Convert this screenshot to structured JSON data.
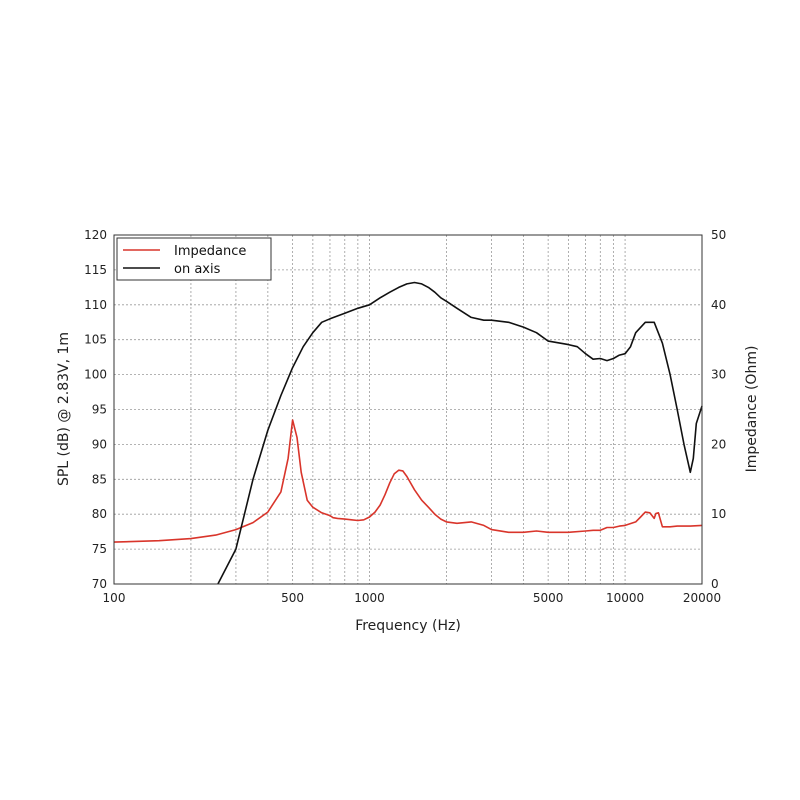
{
  "chart_data": {
    "type": "line",
    "xlabel": "Frequency (Hz)",
    "ylabel_left": "SPL (dB) @ 2.83V, 1m",
    "ylabel_right": "Impedance (Ohm)",
    "x_scale": "log",
    "xlim": [
      100,
      20000
    ],
    "ylim_left": [
      70,
      120
    ],
    "ylim_right": [
      0,
      50
    ],
    "x_tick_labels": [
      "100",
      "500",
      "1000",
      "5000",
      "10000",
      "20000"
    ],
    "y_left_tick_labels": [
      "70",
      "75",
      "80",
      "85",
      "90",
      "95",
      "100",
      "105",
      "110",
      "115",
      "120"
    ],
    "y_right_tick_labels": [
      "0",
      "10",
      "20",
      "30",
      "40",
      "50"
    ],
    "grid": true,
    "legend_placement": "top-left",
    "series": [
      {
        "name": "Impedance",
        "axis": "right",
        "color": "#d9352b",
        "x": [
          100,
          150,
          200,
          250,
          300,
          350,
          400,
          450,
          480,
          500,
          520,
          540,
          570,
          600,
          650,
          700,
          720,
          750,
          800,
          850,
          900,
          950,
          1000,
          1050,
          1100,
          1150,
          1200,
          1250,
          1300,
          1350,
          1400,
          1500,
          1600,
          1700,
          1800,
          1900,
          2000,
          2200,
          2500,
          2800,
          3000,
          3500,
          4000,
          4500,
          5000,
          6000,
          7000,
          7500,
          8000,
          8500,
          9000,
          9500,
          10000,
          11000,
          11500,
          12000,
          12500,
          13000,
          13200,
          13500,
          14000,
          14500,
          15000,
          16000,
          18000,
          20000
        ],
        "y": [
          6.0,
          6.2,
          6.5,
          7.0,
          7.8,
          8.8,
          10.3,
          13.2,
          18.0,
          23.5,
          21.0,
          16.0,
          12.0,
          11.0,
          10.2,
          9.8,
          9.5,
          9.4,
          9.3,
          9.2,
          9.1,
          9.2,
          9.6,
          10.3,
          11.3,
          12.8,
          14.5,
          15.8,
          16.3,
          16.2,
          15.4,
          13.5,
          12.0,
          11.0,
          10.0,
          9.3,
          8.9,
          8.7,
          8.9,
          8.4,
          7.8,
          7.4,
          7.4,
          7.6,
          7.4,
          7.4,
          7.6,
          7.7,
          7.7,
          8.1,
          8.1,
          8.3,
          8.4,
          8.9,
          9.6,
          10.3,
          10.2,
          9.4,
          10.1,
          10.2,
          8.2,
          8.2,
          8.2,
          8.3,
          8.3,
          8.4
        ]
      },
      {
        "name": "on axis",
        "axis": "left",
        "color": "#111111",
        "x": [
          255,
          300,
          350,
          400,
          450,
          500,
          550,
          600,
          650,
          700,
          800,
          900,
          1000,
          1100,
          1200,
          1300,
          1400,
          1500,
          1600,
          1700,
          1800,
          1900,
          2000,
          2200,
          2500,
          2800,
          3000,
          3500,
          4000,
          4500,
          5000,
          6000,
          6500,
          7000,
          7500,
          8000,
          8500,
          9000,
          9500,
          10000,
          10500,
          11000,
          12000,
          13000,
          14000,
          15000,
          16000,
          17000,
          18000,
          18500,
          19000,
          20000
        ],
        "y": [
          70,
          75,
          85,
          92,
          97,
          101,
          104,
          106,
          107.5,
          108,
          108.8,
          109.5,
          110,
          111,
          111.8,
          112.5,
          113,
          113.2,
          113,
          112.5,
          111.8,
          111,
          110.5,
          109.5,
          108.2,
          107.8,
          107.8,
          107.5,
          106.8,
          106,
          104.8,
          104.3,
          104.0,
          103,
          102.2,
          102.3,
          102.0,
          102.3,
          102.8,
          103,
          104,
          106,
          107.5,
          107.5,
          104.5,
          100,
          95,
          90,
          86,
          88,
          93,
          95.5
        ]
      }
    ]
  }
}
